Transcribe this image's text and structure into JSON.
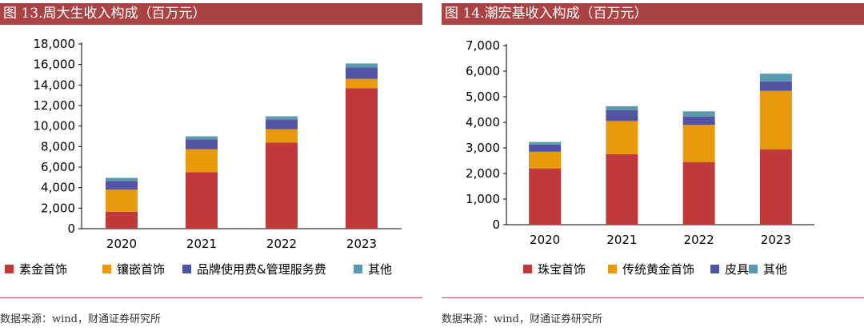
{
  "chart_data": [
    {
      "type": "bar",
      "stacked": true,
      "title": "图 13.周大生收入构成（百万元）",
      "categories": [
        "2020",
        "2021",
        "2022",
        "2023"
      ],
      "series": [
        {
          "name": "素金首饰",
          "color": "#c0393b",
          "values": [
            1650,
            5500,
            8400,
            13700
          ]
        },
        {
          "name": "镶嵌首饰",
          "color": "#e89a0c",
          "values": [
            2150,
            2250,
            1300,
            900
          ]
        },
        {
          "name": "品牌使用费&管理服务费",
          "color": "#5254a3",
          "values": [
            850,
            950,
            950,
            1100
          ]
        },
        {
          "name": "其他",
          "color": "#5a9aae",
          "values": [
            300,
            300,
            300,
            400
          ]
        }
      ],
      "ylim": [
        0,
        18000
      ],
      "yticks": [
        "0",
        "2,000",
        "4,000",
        "6,000",
        "8,000",
        "10,000",
        "12,000",
        "14,000",
        "16,000",
        "18,000"
      ],
      "ytick_values": [
        0,
        2000,
        4000,
        6000,
        8000,
        10000,
        12000,
        14000,
        16000,
        18000
      ],
      "xlabel": "",
      "ylabel": "",
      "legend_position": "bottom"
    },
    {
      "type": "bar",
      "stacked": true,
      "title": "图 14.潮宏基收入构成（百万元）",
      "categories": [
        "2020",
        "2021",
        "2022",
        "2023"
      ],
      "series": [
        {
          "name": "珠宝首饰",
          "color": "#c0393b",
          "values": [
            2200,
            2750,
            2450,
            2950
          ]
        },
        {
          "name": "传统黄金首饰",
          "color": "#e89a0c",
          "values": [
            650,
            1300,
            1450,
            2280
          ]
        },
        {
          "name": "皮具",
          "color": "#5254a3",
          "values": [
            280,
            430,
            330,
            370
          ]
        },
        {
          "name": "其他",
          "color": "#5a9aae",
          "values": [
            100,
            150,
            200,
            300
          ]
        }
      ],
      "ylim": [
        0,
        7000
      ],
      "yticks": [
        "0",
        "1,000",
        "2,000",
        "3,000",
        "4,000",
        "5,000",
        "6,000",
        "7,000"
      ],
      "ytick_values": [
        0,
        1000,
        2000,
        3000,
        4000,
        5000,
        6000,
        7000
      ],
      "xlabel": "",
      "ylabel": "",
      "legend_position": "bottom"
    }
  ],
  "footer": {
    "left_source": "数据来源：wind，财通证券研究所",
    "right_source": "数据来源：wind，财通证券研究所"
  }
}
